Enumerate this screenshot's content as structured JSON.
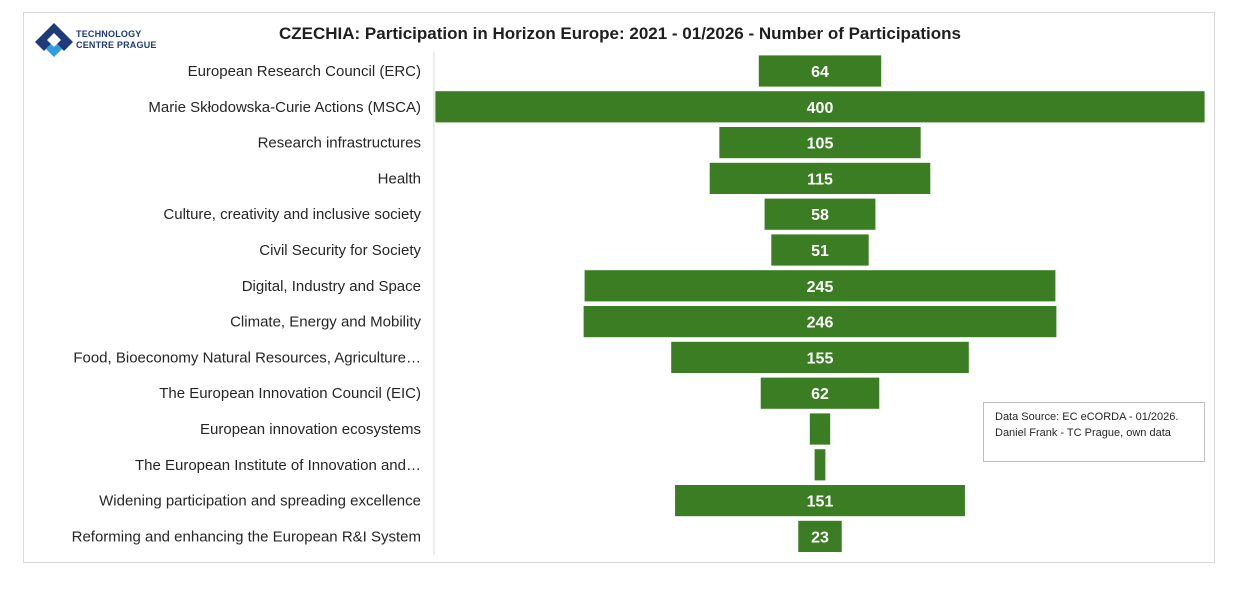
{
  "logo": {
    "line1": "TECHNOLOGY",
    "line2": "CENTRE PRAGUE",
    "colors": {
      "dark": "#1e3a78",
      "light": "#2f9be0"
    }
  },
  "note": {
    "line1": "Data Source: EC eCORDA - 01/2026.",
    "line2": "Daniel Frank - TC Prague, own data"
  },
  "chart_data": {
    "type": "bar",
    "orientation": "horizontal-centered",
    "title": "CZECHIA: Participation in Horizon Europe: 2021 - 01/2026 - Number of Participations",
    "xlabel": "",
    "ylabel": "",
    "bar_color": "#3a7d22",
    "grid": false,
    "legend": "none",
    "xlim": [
      0,
      400
    ],
    "categories": [
      "European Research Council (ERC)",
      "Marie Skłodowska-Curie Actions (MSCA)",
      "Research infrastructures",
      "Health",
      "Culture, creativity and inclusive society",
      "Civil Security for Society",
      "Digital, Industry and Space",
      "Climate, Energy and Mobility",
      "Food, Bioeconomy Natural Resources, Agriculture…",
      "The European Innovation  Council (EIC)",
      "European innovation ecosystems",
      "The European Institute of Innovation and…",
      "Widening participation and spreading excellence",
      "Reforming and enhancing the European R&I System"
    ],
    "values": [
      64,
      400,
      105,
      115,
      58,
      51,
      245,
      246,
      155,
      62,
      11,
      6,
      151,
      23
    ],
    "labels": [
      "64",
      "400",
      "105",
      "115",
      "58",
      "51",
      "245",
      "246",
      "155",
      "62",
      "",
      "",
      "151",
      "23"
    ]
  }
}
